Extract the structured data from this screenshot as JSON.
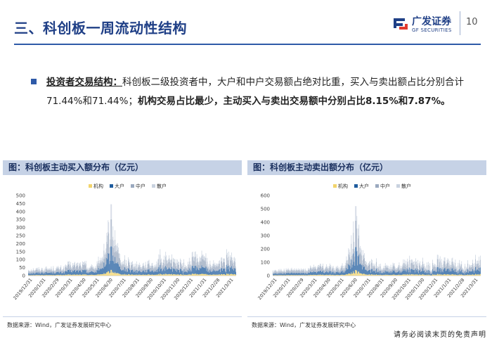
{
  "header": {
    "title": "三、科创板一周流动性结构",
    "logo_cn": "广发证券",
    "logo_en": "GF SECURITIES",
    "page_number": "10"
  },
  "summary": {
    "heading": "投资者交易结构：",
    "body": "科创板二级投资者中，大户和中户交易额占绝对比重，买入与卖出额占比分别合计71.44%和71.44%；",
    "emphasis": "机构交易占比最少，主动买入与卖出交易额中分别占比8.15%和7.87%。"
  },
  "colors": {
    "institution": "#f2d46b",
    "large": "#1f5c9e",
    "medium": "#9aa9bf",
    "retail": "#c9d2df",
    "brand": "#1f3f86"
  },
  "legend": [
    "机构",
    "大户",
    "中户",
    "散户"
  ],
  "x_ticks": [
    "2019/12/31",
    "2020/1/31",
    "2020/2/29",
    "2020/3/31",
    "2020/4/30",
    "2020/5/31",
    "2020/6/30",
    "2020/7/31",
    "2020/8/31",
    "2020/9/30",
    "2020/10/31",
    "2020/11/30",
    "2020/12/31",
    "2021/1/31",
    "2021/2/28",
    "2021/3/31"
  ],
  "chart_data": [
    {
      "type": "bar",
      "title": "图：科创板主动买入额分布（亿元）",
      "stacked": true,
      "ylim": [
        0,
        500
      ],
      "yticks": [
        0,
        50,
        100,
        150,
        200,
        250,
        300,
        350,
        400,
        450,
        500
      ],
      "grid": false,
      "legend_position": "top",
      "series_names": [
        "机构",
        "大户",
        "中户",
        "散户"
      ],
      "approx_total_profile": "daily stacked bars ~20-120 early 2020, peak ~445 around 2020/7/22, ~60-170 afterwards"
    },
    {
      "type": "bar",
      "title": "图：科创板主动卖出额分布（亿元）",
      "stacked": true,
      "ylim": [
        0,
        600
      ],
      "yticks": [
        0,
        100,
        200,
        300,
        400,
        500,
        600
      ],
      "grid": false,
      "legend_position": "top",
      "series_names": [
        "机构",
        "大户",
        "中户",
        "散户"
      ],
      "approx_total_profile": "daily stacked bars ~20-150 early 2020, peak ~520 around 2020/7/22, ~60-170 afterwards"
    }
  ],
  "source_text": "数据来源：Wind，广发证券发展研究中心",
  "disclaimer": "请务必阅读末页的免责声明"
}
